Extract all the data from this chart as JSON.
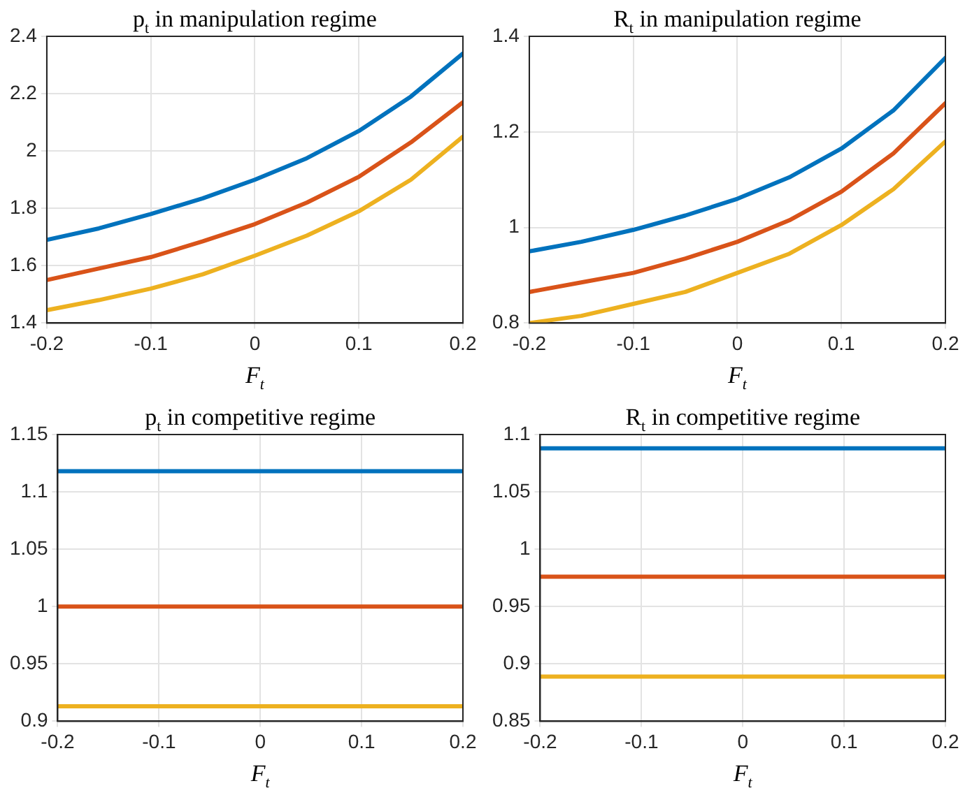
{
  "chart_data": [
    {
      "type": "line",
      "title": "p$_{t}$ in manipulation regime",
      "xlabel": "F$_{t}$",
      "x": [
        -0.2,
        -0.15,
        -0.1,
        -0.05,
        0,
        0.05,
        0.1,
        0.15,
        0.2
      ],
      "xlim": [
        -0.2,
        0.2
      ],
      "xticks": [
        -0.2,
        -0.1,
        0,
        0.1,
        0.2
      ],
      "ylim": [
        1.4,
        2.4
      ],
      "yticks": [
        1.4,
        1.6,
        1.8,
        2,
        2.2,
        2.4
      ],
      "grid": true,
      "marker": "none",
      "line_style": "solid",
      "series": [
        {
          "color": "#0072bd",
          "values": [
            1.69,
            1.73,
            1.78,
            1.835,
            1.9,
            1.975,
            2.07,
            2.19,
            2.34
          ]
        },
        {
          "color": "#d95319",
          "values": [
            1.55,
            1.59,
            1.63,
            1.685,
            1.745,
            1.82,
            1.91,
            2.03,
            2.17
          ]
        },
        {
          "color": "#edb120",
          "values": [
            1.445,
            1.48,
            1.52,
            1.57,
            1.635,
            1.705,
            1.79,
            1.9,
            2.05
          ]
        }
      ]
    },
    {
      "type": "line",
      "title": "R$_{t}$ in manipulation regime",
      "xlabel": "F$_{t}$",
      "x": [
        -0.2,
        -0.15,
        -0.1,
        -0.05,
        0,
        0.05,
        0.1,
        0.15,
        0.2
      ],
      "xlim": [
        -0.2,
        0.2
      ],
      "xticks": [
        -0.2,
        -0.1,
        0,
        0.1,
        0.2
      ],
      "ylim": [
        0.8,
        1.4
      ],
      "yticks": [
        0.8,
        1,
        1.2,
        1.4
      ],
      "grid": true,
      "marker": "none",
      "line_style": "solid",
      "series": [
        {
          "color": "#0072bd",
          "values": [
            0.95,
            0.97,
            0.995,
            1.025,
            1.06,
            1.105,
            1.165,
            1.245,
            1.355
          ]
        },
        {
          "color": "#d95319",
          "values": [
            0.865,
            0.885,
            0.905,
            0.935,
            0.97,
            1.015,
            1.075,
            1.155,
            1.26
          ]
        },
        {
          "color": "#edb120",
          "values": [
            0.8,
            0.815,
            0.84,
            0.865,
            0.905,
            0.945,
            1.005,
            1.08,
            1.18
          ]
        }
      ]
    },
    {
      "type": "line",
      "title": "p$_{t}$ in competitive regime",
      "xlabel": "F$_{t}$",
      "x": [
        -0.2,
        0.2
      ],
      "xlim": [
        -0.2,
        0.2
      ],
      "xticks": [
        -0.2,
        -0.1,
        0,
        0.1,
        0.2
      ],
      "ylim": [
        0.9,
        1.15
      ],
      "yticks": [
        0.9,
        0.95,
        1,
        1.05,
        1.1,
        1.15
      ],
      "grid": true,
      "marker": "none",
      "line_style": "solid",
      "series": [
        {
          "color": "#0072bd",
          "values": [
            1.118,
            1.118
          ]
        },
        {
          "color": "#d95319",
          "values": [
            1.0,
            1.0
          ]
        },
        {
          "color": "#edb120",
          "values": [
            0.913,
            0.913
          ]
        }
      ]
    },
    {
      "type": "line",
      "title": "R$_{t}$ in competitive regime",
      "xlabel": "F$_{t}$",
      "x": [
        -0.2,
        0.2
      ],
      "xlim": [
        -0.2,
        0.2
      ],
      "xticks": [
        -0.2,
        -0.1,
        0,
        0.1,
        0.2
      ],
      "ylim": [
        0.85,
        1.1
      ],
      "yticks": [
        0.85,
        0.9,
        0.95,
        1,
        1.05,
        1.1
      ],
      "grid": true,
      "marker": "none",
      "line_style": "solid",
      "series": [
        {
          "color": "#0072bd",
          "values": [
            1.088,
            1.088
          ]
        },
        {
          "color": "#d95319",
          "values": [
            0.976,
            0.976
          ]
        },
        {
          "color": "#edb120",
          "values": [
            0.889,
            0.889
          ]
        }
      ]
    }
  ]
}
